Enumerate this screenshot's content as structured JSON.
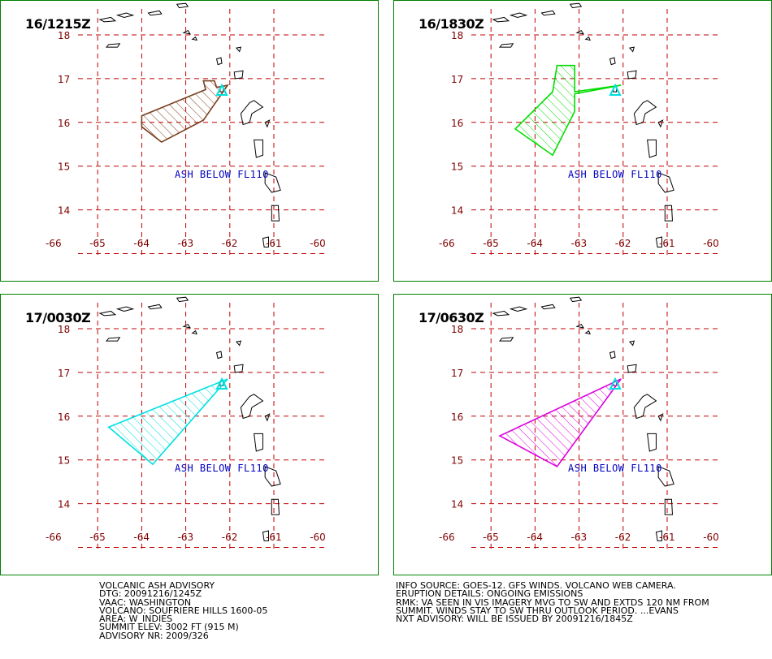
{
  "panels": [
    {
      "time": "16/1215Z",
      "ash_label": "ASH BELOW FL110",
      "polygon_color": "#7a4020",
      "polygon": [
        [
          -64.0,
          15.9
        ],
        [
          -63.55,
          15.55
        ],
        [
          -62.6,
          16.05
        ],
        [
          -62.05,
          16.85
        ],
        [
          -62.3,
          16.8
        ],
        [
          -62.35,
          16.95
        ],
        [
          -62.6,
          16.95
        ],
        [
          -62.55,
          16.75
        ],
        [
          -64.0,
          16.15
        ]
      ]
    },
    {
      "time": "16/1830Z",
      "ash_label": "ASH BELOW FL110",
      "polygon_color": "#00dd00",
      "polygon": [
        [
          -64.45,
          15.85
        ],
        [
          -63.6,
          15.25
        ],
        [
          -63.1,
          16.25
        ],
        [
          -63.1,
          16.65
        ],
        [
          -62.05,
          16.85
        ],
        [
          -63.1,
          16.7
        ],
        [
          -63.1,
          17.3
        ],
        [
          -63.5,
          17.3
        ],
        [
          -63.6,
          16.7
        ],
        [
          -64.45,
          15.85
        ]
      ]
    },
    {
      "time": "17/0030Z",
      "ash_label": "ASH BELOW FL110",
      "polygon_color": "#00e0e0",
      "polygon": [
        [
          -64.75,
          15.75
        ],
        [
          -63.75,
          14.9
        ],
        [
          -62.05,
          16.85
        ]
      ]
    },
    {
      "time": "17/0630Z",
      "ash_label": "ASH BELOW FL110",
      "polygon_color": "#dd00dd",
      "polygon": [
        [
          -64.8,
          15.55
        ],
        [
          -63.5,
          14.85
        ],
        [
          -62.05,
          16.85
        ]
      ]
    }
  ],
  "map": {
    "longitudes": [
      "-66",
      "-65",
      "-64",
      "-63",
      "-62",
      "-61",
      "-60"
    ],
    "latitudes": [
      "18",
      "17",
      "16",
      "15",
      "14"
    ],
    "volcano_marker_color": "#00e0e0",
    "grid_color": "#c00000",
    "coast_color": "#000000"
  },
  "footer": {
    "left": [
      "VOLCANIC ASH ADVISORY",
      "DTG: 20091216/1245Z",
      "VAAC: WASHINGTON",
      "VOLCANO: SOUFRIERE HILLS 1600-05",
      "AREA: W_INDIES",
      "SUMMIT ELEV: 3002 FT (915 M)",
      "ADVISORY NR: 2009/326"
    ],
    "right": [
      "INFO SOURCE: GOES-12. GFS WINDS. VOLCANO WEB CAMERA.",
      "ERUPTION DETAILS: ONGOING EMISSIONS",
      "RMK: VA SEEN IN VIS IMAGERY MVG TO SW AND EXTDS 120 NM FROM",
      "SUMMIT. WINDS STAY TO SW THRU OUTLOOK PERIOD. ...EVANS",
      "NXT ADVISORY: WILL BE ISSUED BY 20091216/1845Z"
    ]
  }
}
